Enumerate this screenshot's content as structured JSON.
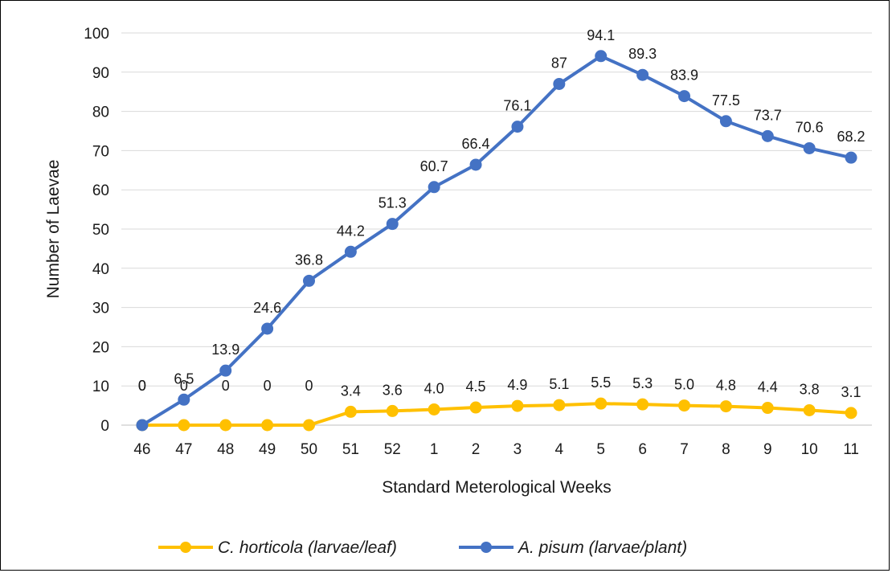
{
  "chart_data": {
    "type": "line",
    "xlabel": "Standard Meterological Weeks",
    "ylabel": "Number of Laevae",
    "ylim": [
      0,
      100
    ],
    "yticks": [
      0,
      10,
      20,
      30,
      40,
      50,
      60,
      70,
      80,
      90,
      100
    ],
    "categories": [
      "46",
      "47",
      "48",
      "49",
      "50",
      "51",
      "52",
      "1",
      "2",
      "3",
      "4",
      "5",
      "6",
      "7",
      "8",
      "9",
      "10",
      "11"
    ],
    "grid": "horizontal",
    "legend_position": "bottom",
    "series": [
      {
        "name": "C. horticola (larvae/leaf)",
        "color": "#FFC000",
        "values": [
          0,
          0,
          0,
          0,
          0,
          3.4,
          3.6,
          4.0,
          4.5,
          4.9,
          5.1,
          5.5,
          5.3,
          5.0,
          4.8,
          4.4,
          3.8,
          3.1
        ],
        "labels": [
          "0",
          "0",
          "0",
          "0",
          "0",
          "3.4",
          "3.6",
          "4.0",
          "4.5",
          "4.9",
          "5.1",
          "5.5",
          "5.3",
          "5.0",
          "4.8",
          "4.4",
          "3.8",
          "3.1"
        ]
      },
      {
        "name": "A. pisum (larvae/plant)",
        "color": "#4472C4",
        "values": [
          0,
          6.5,
          13.9,
          24.6,
          36.8,
          44.2,
          51.3,
          60.7,
          66.4,
          76.1,
          87,
          94.1,
          89.3,
          83.9,
          77.5,
          73.7,
          70.6,
          68.2
        ],
        "labels": [
          "0",
          "6.5",
          "13.9",
          "24.6",
          "36.8",
          "44.2",
          "51.3",
          "60.7",
          "66.4",
          "76.1",
          "87",
          "94.1",
          "89.3",
          "83.9",
          "77.5",
          "73.7",
          "70.6",
          "68.2"
        ]
      }
    ]
  }
}
